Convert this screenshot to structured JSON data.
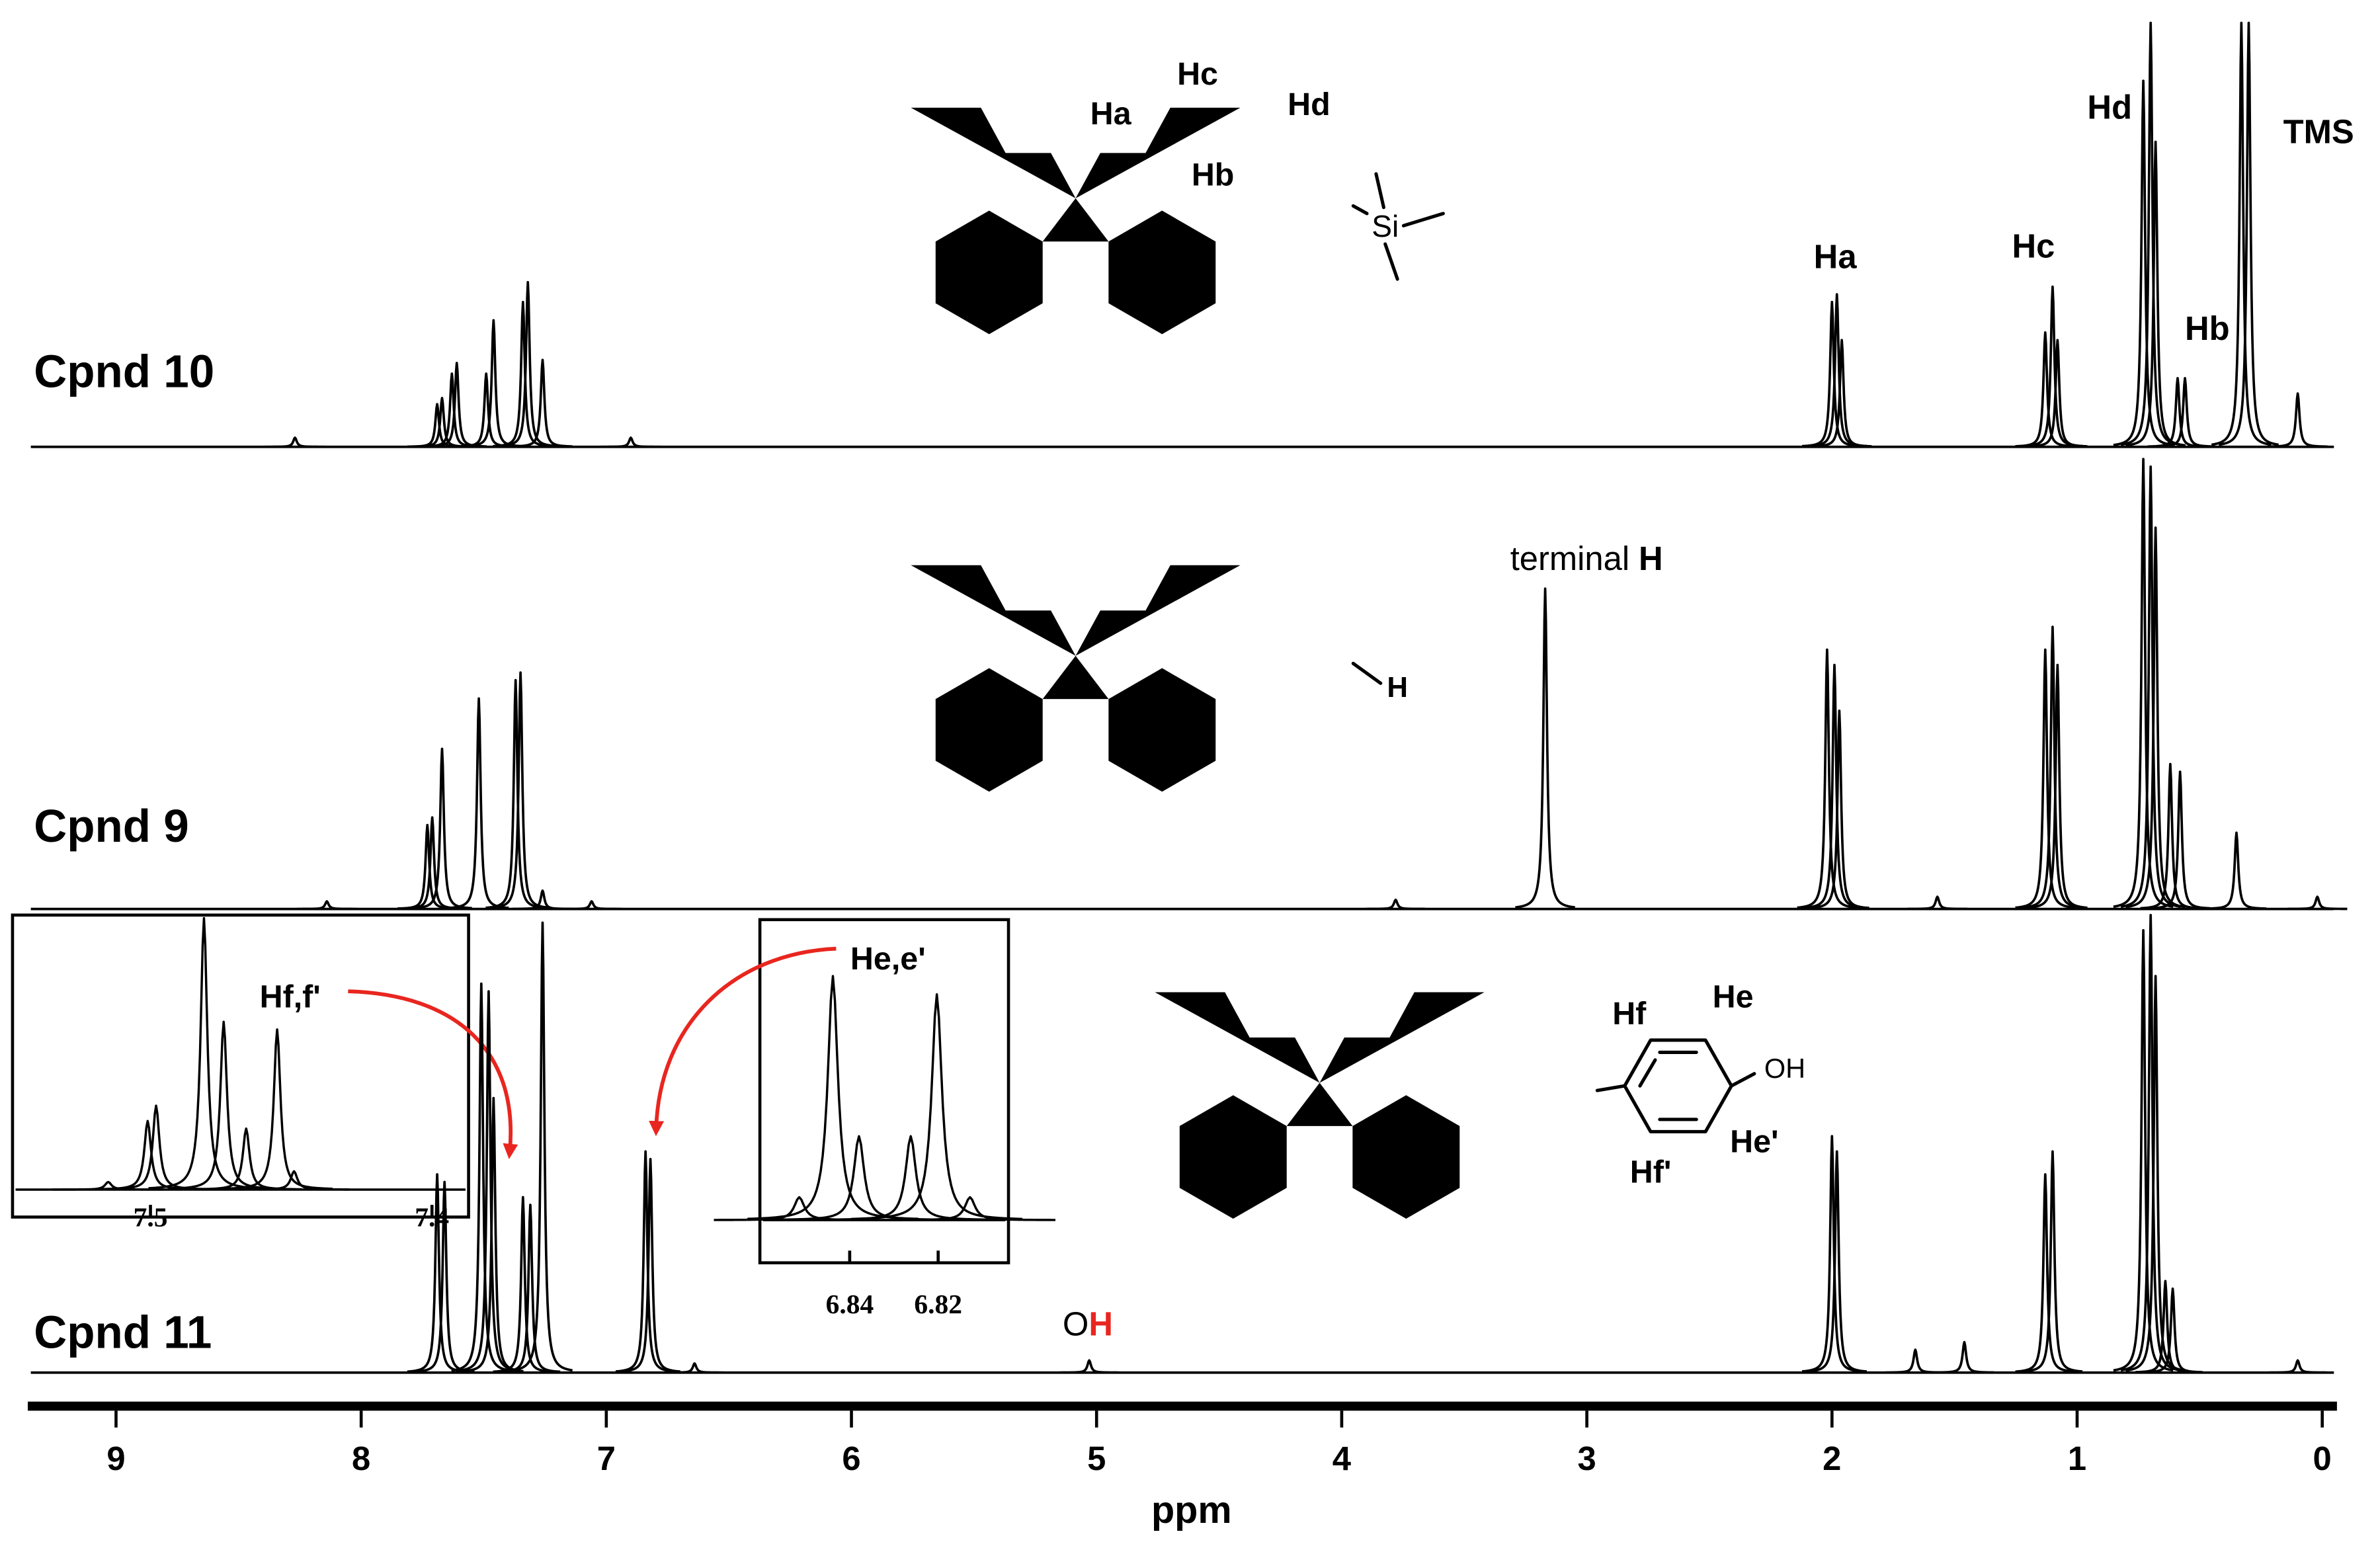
{
  "chart_data": [
    {
      "type": "nmr",
      "xlabel": "ppm",
      "xlim": [
        9.36,
        -0.06
      ],
      "xticks": [
        9,
        8,
        7,
        6,
        5,
        4,
        3,
        2,
        1,
        0
      ],
      "series": [
        {
          "name": "Cpnd 10",
          "color": "#000000",
          "x": [
            8.27,
            7.69,
            7.67,
            7.63,
            7.61,
            7.49,
            7.46,
            7.34,
            7.32,
            7.26,
            6.9,
            2.0,
            1.98,
            1.96,
            1.13,
            1.1,
            1.08,
            0.73,
            0.7,
            0.68,
            0.59,
            0.56,
            0.33,
            0.3,
            0.1
          ],
          "values": [
            6,
            28,
            32,
            48,
            55,
            48,
            83,
            95,
            108,
            57,
            6,
            95,
            100,
            70,
            75,
            105,
            70,
            240,
            278,
            200,
            45,
            45,
            278,
            278,
            35
          ]
        },
        {
          "name": "Cpnd 9",
          "color": "#000000",
          "x": [
            8.14,
            7.73,
            7.71,
            7.67,
            7.52,
            7.37,
            7.35,
            7.26,
            7.06,
            3.78,
            3.17,
            2.02,
            1.99,
            1.97,
            1.57,
            1.13,
            1.1,
            1.08,
            0.73,
            0.7,
            0.68,
            0.62,
            0.58,
            0.35,
            0.02
          ],
          "values": [
            5,
            55,
            60,
            105,
            138,
            150,
            155,
            12,
            5,
            6,
            210,
            170,
            160,
            130,
            8,
            170,
            185,
            160,
            295,
            290,
            250,
            95,
            90,
            50,
            8
          ]
        },
        {
          "name": "Cpnd 11",
          "color": "#000000",
          "x": [
            7.69,
            7.66,
            7.51,
            7.48,
            7.46,
            7.34,
            7.31,
            7.26,
            6.84,
            6.82,
            6.64,
            5.03,
            2.0,
            1.98,
            1.66,
            1.46,
            1.13,
            1.1,
            0.73,
            0.7,
            0.68,
            0.64,
            0.61,
            0.1
          ],
          "values": [
            130,
            125,
            255,
            250,
            180,
            115,
            110,
            295,
            145,
            140,
            6,
            8,
            155,
            145,
            15,
            20,
            130,
            145,
            290,
            300,
            260,
            60,
            55,
            8
          ]
        }
      ],
      "annotations": {
        "peak_labels": [
          "Ha",
          "Hc",
          "Hd",
          "Hb",
          "TMS"
        ],
        "terminal": [
          "terminal",
          "H"
        ],
        "oh": [
          "O",
          "H"
        ]
      }
    },
    {
      "type": "nmr",
      "label": "Hf,f'",
      "xlim": [
        7.549,
        7.387
      ],
      "xticks": [
        7.5,
        7.4
      ],
      "series": [
        {
          "color": "#000000",
          "x": [
            7.515,
            7.501,
            7.498,
            7.481,
            7.474,
            7.466,
            7.455,
            7.449
          ],
          "values": [
            5,
            45,
            55,
            178,
            110,
            40,
            105,
            12
          ]
        }
      ]
    },
    {
      "type": "nmr",
      "label": "He,e'",
      "xlim": [
        6.8603,
        6.8041
      ],
      "xticks": [
        6.84,
        6.82
      ],
      "series": [
        {
          "color": "#000000",
          "x": [
            6.8514,
            6.8438,
            6.8379,
            6.8262,
            6.8203,
            6.8128
          ],
          "values": [
            15,
            160,
            55,
            55,
            148,
            15
          ]
        }
      ]
    }
  ],
  "structures": [
    {
      "labels": [
        "Ha",
        "Hc",
        "Hd",
        "Hb",
        "Si"
      ]
    },
    {
      "labels": [
        "H"
      ]
    },
    {
      "labels": [
        "Hf",
        "He",
        "OH",
        "He'",
        "Hf'"
      ]
    }
  ]
}
